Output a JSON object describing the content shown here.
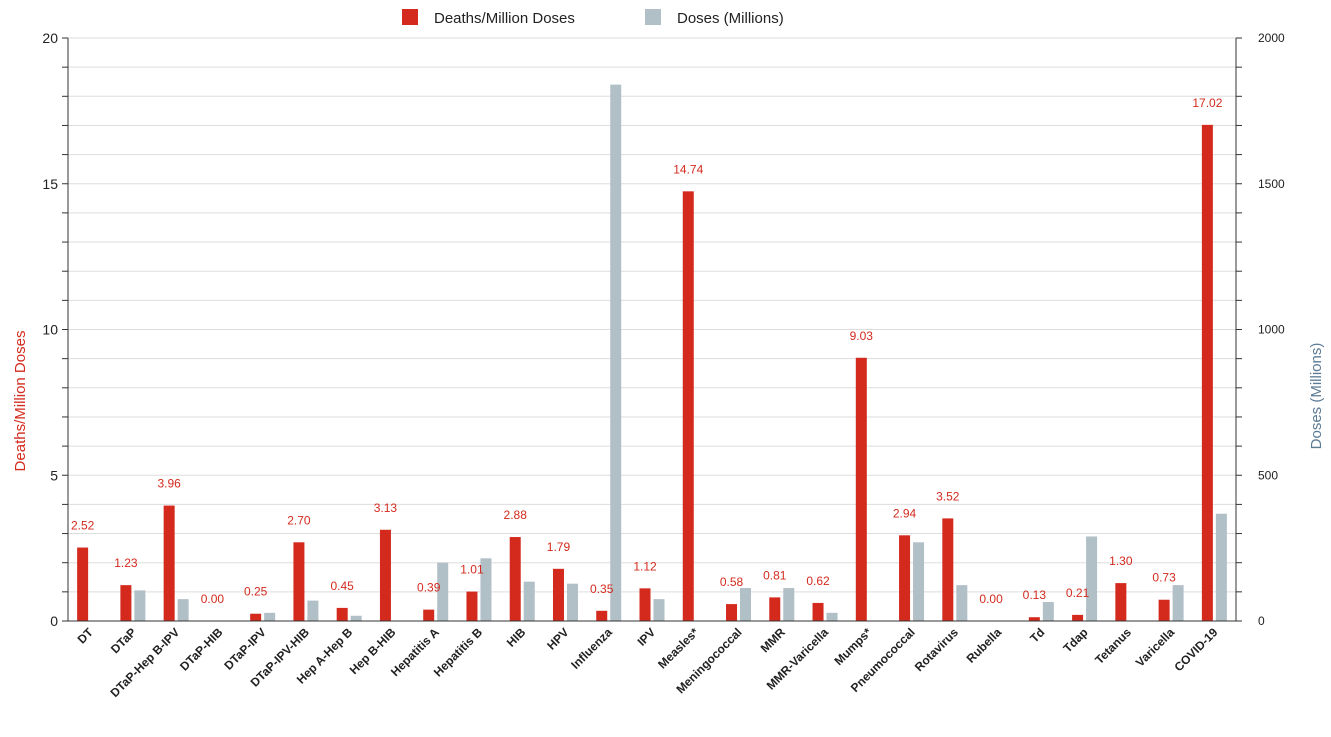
{
  "chart_data": {
    "type": "bar",
    "categories": [
      "DT",
      "DTaP",
      "DTaP-Hep B-IPV",
      "DTaP-HIB",
      "DTaP-IPV",
      "DTaP-IPV-HIB",
      "Hep A-Hep B",
      "Hep B-HIB",
      "Hepatitis A",
      "Hepatitis B",
      "HIB",
      "HPV",
      "Influenza",
      "IPV",
      "Measles*",
      "Meningococcal",
      "MMR",
      "MMR-Varicella",
      "Mumps*",
      "Pneumococcal",
      "Rotavirus",
      "Rubella",
      "Td",
      "Tdap",
      "Tetanus",
      "Varicella",
      "COVID-19"
    ],
    "series": [
      {
        "name": "Deaths/Million Doses",
        "axis": "left",
        "color": "#d42a1e",
        "values": [
          2.52,
          1.23,
          3.96,
          0.0,
          0.25,
          2.7,
          0.45,
          3.13,
          0.39,
          1.01,
          2.88,
          1.79,
          0.35,
          1.12,
          14.74,
          0.58,
          0.81,
          0.62,
          9.03,
          2.94,
          3.52,
          0.0,
          0.13,
          0.21,
          1.3,
          0.73,
          17.02
        ],
        "labels": [
          "2.52",
          "1.23",
          "3.96",
          "0.00",
          "0.25",
          "2.70",
          "0.45",
          "3.13",
          "0.39",
          "1.01",
          "2.88",
          "1.79",
          "0.35",
          "1.12",
          "14.74",
          "0.58",
          "0.81",
          "0.62",
          "9.03",
          "2.94",
          "3.52",
          "0.00",
          "0.13",
          "0.21",
          "1.30",
          "0.73",
          "17.02"
        ]
      },
      {
        "name": "Doses (Millions)",
        "axis": "right",
        "color": "#b1bfc7",
        "values": [
          0,
          105,
          75,
          0,
          28,
          70,
          18,
          0,
          200,
          215,
          135,
          128,
          1840,
          75,
          0,
          113,
          113,
          28,
          0,
          270,
          123,
          0,
          65,
          290,
          0,
          123,
          368
        ]
      }
    ],
    "y_left": {
      "label": "Deaths/Million Doses",
      "range": [
        0,
        20
      ],
      "ticks": [
        "0",
        "5",
        "10",
        "15",
        "20"
      ],
      "minor_step": 1,
      "color": "#d42a1e"
    },
    "y_right": {
      "label": "Doses (Millions)",
      "range": [
        0,
        2000
      ],
      "ticks": [
        "0",
        "500",
        "1000",
        "1500",
        "2000"
      ],
      "color": "#5b7a94"
    },
    "xlabel": "",
    "grid": true,
    "legend_position": "top-center"
  }
}
